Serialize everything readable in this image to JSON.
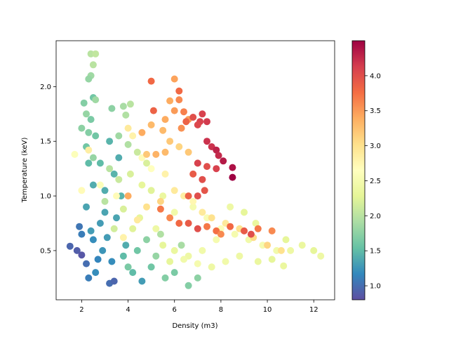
{
  "chart_data": {
    "type": "scatter",
    "title": "",
    "xlabel": "Density (m3)",
    "ylabel": "Temperature (keV)",
    "xlim": [
      0.9,
      12.9
    ],
    "ylim": [
      0.05,
      2.42
    ],
    "xticks": [
      2,
      4,
      6,
      8,
      10,
      12
    ],
    "yticks": [
      0.5,
      1.0,
      1.5,
      2.0
    ],
    "colorbar": {
      "cmap": "Spectral_r",
      "range": [
        0.8,
        4.5
      ],
      "ticks": [
        1.0,
        1.5,
        2.0,
        2.5,
        3.0,
        3.5,
        4.0
      ]
    },
    "points": [
      [
        1.5,
        0.54,
        0.95
      ],
      [
        1.8,
        0.5,
        0.9
      ],
      [
        2.0,
        0.46,
        0.85
      ],
      [
        1.9,
        0.72,
        1.05
      ],
      [
        2.2,
        0.38,
        1.0
      ],
      [
        2.3,
        0.25,
        1.1
      ],
      [
        2.6,
        0.3,
        1.2
      ],
      [
        2.5,
        0.6,
        1.2
      ],
      [
        2.8,
        0.75,
        1.3
      ],
      [
        3.0,
        0.85,
        1.35
      ],
      [
        3.2,
        0.2,
        1.0
      ],
      [
        3.4,
        0.22,
        0.95
      ],
      [
        2.9,
        0.5,
        1.25
      ],
      [
        2.2,
        0.9,
        1.35
      ],
      [
        2.4,
        0.68,
        1.3
      ],
      [
        2.7,
        0.42,
        1.15
      ],
      [
        3.1,
        0.62,
        1.3
      ],
      [
        2.0,
        0.65,
        1.1
      ],
      [
        3.3,
        0.4,
        1.2
      ],
      [
        2.5,
        1.1,
        1.4
      ],
      [
        3.0,
        1.05,
        1.4
      ],
      [
        3.4,
        1.2,
        1.45
      ],
      [
        2.8,
        1.3,
        1.5
      ],
      [
        3.6,
        1.35,
        1.4
      ],
      [
        3.2,
        1.5,
        1.45
      ],
      [
        2.6,
        1.55,
        1.6
      ],
      [
        2.2,
        1.45,
        1.6
      ],
      [
        2.4,
        1.7,
        1.65
      ],
      [
        2.1,
        1.85,
        1.7
      ],
      [
        2.5,
        1.9,
        1.6
      ],
      [
        2.3,
        1.3,
        1.5
      ],
      [
        3.7,
        1.0,
        1.45
      ],
      [
        3.5,
        0.8,
        1.35
      ],
      [
        3.9,
        0.55,
        1.4
      ],
      [
        4.2,
        0.3,
        1.5
      ],
      [
        4.6,
        0.22,
        1.3
      ],
      [
        5.0,
        0.35,
        1.6
      ],
      [
        5.6,
        0.25,
        1.7
      ],
      [
        5.2,
        0.45,
        1.8
      ],
      [
        6.0,
        0.3,
        1.65
      ],
      [
        6.6,
        0.18,
        1.7
      ],
      [
        7.0,
        0.25,
        1.75
      ],
      [
        6.3,
        0.55,
        1.9
      ],
      [
        4.8,
        0.6,
        1.75
      ],
      [
        4.4,
        0.5,
        1.6
      ],
      [
        3.8,
        0.45,
        1.5
      ],
      [
        4.0,
        0.35,
        1.65
      ],
      [
        5.4,
        0.65,
        1.95
      ],
      [
        2.4,
        2.3,
        2.0
      ],
      [
        2.6,
        2.3,
        2.05
      ],
      [
        2.5,
        2.2,
        2.0
      ],
      [
        2.4,
        2.1,
        1.85
      ],
      [
        2.3,
        2.07,
        1.8
      ],
      [
        2.6,
        1.88,
        1.85
      ],
      [
        3.3,
        1.8,
        1.75
      ],
      [
        3.8,
        1.82,
        1.9
      ],
      [
        4.1,
        1.84,
        2.0
      ],
      [
        3.9,
        1.74,
        1.95
      ],
      [
        2.2,
        1.75,
        1.8
      ],
      [
        2.0,
        1.62,
        1.75
      ],
      [
        2.3,
        1.58,
        1.7
      ],
      [
        2.5,
        1.35,
        1.8
      ],
      [
        3.6,
        1.55,
        1.85
      ],
      [
        4.0,
        1.47,
        1.95
      ],
      [
        4.4,
        1.4,
        2.1
      ],
      [
        4.8,
        1.3,
        2.2
      ],
      [
        3.2,
        1.25,
        2.0
      ],
      [
        3.6,
        1.15,
        2.1
      ],
      [
        4.1,
        1.2,
        2.2
      ],
      [
        4.6,
        1.1,
        2.3
      ],
      [
        5.0,
        1.05,
        2.25
      ],
      [
        5.5,
        1.0,
        2.35
      ],
      [
        3.0,
        0.95,
        2.0
      ],
      [
        3.8,
        0.88,
        2.2
      ],
      [
        4.5,
        0.8,
        2.3
      ],
      [
        5.2,
        0.7,
        2.4
      ],
      [
        6.0,
        0.85,
        2.45
      ],
      [
        6.8,
        0.9,
        2.5
      ],
      [
        7.4,
        0.8,
        2.55
      ],
      [
        8.0,
        0.7,
        2.6
      ],
      [
        8.6,
        0.65,
        2.5
      ],
      [
        9.2,
        0.6,
        2.45
      ],
      [
        9.8,
        0.55,
        2.5
      ],
      [
        10.4,
        0.5,
        2.45
      ],
      [
        11.0,
        0.5,
        2.4
      ],
      [
        11.5,
        0.55,
        2.35
      ],
      [
        12.0,
        0.5,
        2.3
      ],
      [
        12.3,
        0.45,
        2.4
      ],
      [
        10.8,
        0.6,
        2.3
      ],
      [
        9.5,
        0.75,
        2.35
      ],
      [
        9.0,
        0.85,
        2.3
      ],
      [
        8.4,
        0.9,
        2.4
      ],
      [
        7.8,
        0.6,
        2.5
      ],
      [
        7.2,
        0.5,
        2.45
      ],
      [
        6.6,
        0.45,
        2.4
      ],
      [
        6.0,
        0.5,
        2.35
      ],
      [
        5.5,
        0.55,
        2.3
      ],
      [
        8.8,
        0.45,
        2.4
      ],
      [
        9.6,
        0.4,
        2.35
      ],
      [
        10.2,
        0.42,
        2.3
      ],
      [
        10.7,
        0.36,
        2.35
      ],
      [
        8.2,
        0.4,
        2.45
      ],
      [
        7.6,
        0.35,
        2.4
      ],
      [
        7.0,
        0.38,
        2.5
      ],
      [
        6.4,
        0.42,
        2.45
      ],
      [
        5.8,
        0.4,
        2.3
      ],
      [
        4.2,
        0.7,
        2.25
      ],
      [
        3.4,
        0.7,
        2.15
      ],
      [
        1.7,
        1.38,
        2.6
      ],
      [
        2.0,
        1.05,
        2.7
      ],
      [
        2.3,
        1.42,
        2.85
      ],
      [
        2.8,
        1.1,
        2.6
      ],
      [
        3.5,
        1.0,
        2.7
      ],
      [
        4.0,
        1.62,
        2.9
      ],
      [
        4.2,
        1.55,
        2.8
      ],
      [
        4.6,
        1.35,
        2.7
      ],
      [
        5.0,
        1.25,
        2.65
      ],
      [
        5.6,
        1.2,
        2.8
      ],
      [
        6.0,
        1.05,
        2.9
      ],
      [
        6.4,
        1.0,
        2.85
      ],
      [
        6.8,
        0.95,
        2.75
      ],
      [
        7.2,
        0.85,
        2.9
      ],
      [
        7.6,
        0.8,
        3.0
      ],
      [
        8.2,
        0.75,
        2.9
      ],
      [
        8.8,
        0.7,
        3.0
      ],
      [
        9.4,
        0.62,
        3.05
      ],
      [
        10.0,
        0.55,
        3.1
      ],
      [
        10.6,
        0.5,
        3.0
      ],
      [
        5.4,
        0.95,
        3.1
      ],
      [
        4.8,
        0.9,
        3.0
      ],
      [
        4.4,
        0.78,
        2.9
      ],
      [
        3.8,
        0.62,
        2.8
      ],
      [
        5.8,
        1.5,
        3.2
      ],
      [
        5.5,
        1.6,
        3.3
      ],
      [
        6.2,
        1.45,
        3.1
      ],
      [
        6.6,
        1.4,
        3.2
      ],
      [
        7.0,
        1.3,
        3.1
      ],
      [
        5.0,
        1.65,
        3.3
      ],
      [
        4.6,
        1.58,
        3.4
      ],
      [
        4.8,
        1.38,
        3.2
      ],
      [
        5.2,
        1.38,
        3.35
      ],
      [
        5.6,
        1.4,
        3.3
      ],
      [
        4.0,
        1.0,
        3.4
      ],
      [
        5.4,
        0.88,
        3.7
      ],
      [
        5.8,
        0.8,
        3.6
      ],
      [
        6.2,
        0.75,
        3.8
      ],
      [
        6.6,
        0.75,
        3.9
      ],
      [
        7.0,
        0.7,
        4.0
      ],
      [
        7.4,
        0.72,
        3.7
      ],
      [
        7.8,
        0.68,
        3.75
      ],
      [
        8.4,
        0.72,
        3.8
      ],
      [
        9.0,
        0.68,
        3.9
      ],
      [
        9.6,
        0.7,
        3.7
      ],
      [
        10.2,
        0.68,
        3.6
      ],
      [
        9.3,
        0.65,
        4.0
      ],
      [
        8.0,
        0.65,
        3.6
      ],
      [
        6.0,
        2.07,
        3.45
      ],
      [
        5.8,
        1.87,
        3.4
      ],
      [
        6.2,
        1.88,
        3.6
      ],
      [
        6.4,
        1.77,
        3.65
      ],
      [
        6.0,
        1.78,
        3.5
      ],
      [
        5.6,
        1.7,
        3.4
      ],
      [
        6.6,
        1.7,
        3.5
      ],
      [
        6.3,
        1.62,
        3.55
      ],
      [
        5.0,
        2.05,
        3.8
      ],
      [
        5.1,
        1.78,
        3.85
      ],
      [
        6.2,
        1.96,
        3.8
      ],
      [
        6.5,
        1.68,
        3.85
      ],
      [
        6.8,
        1.72,
        4.0
      ],
      [
        7.1,
        1.68,
        4.1
      ],
      [
        7.0,
        1.65,
        4.05
      ],
      [
        7.2,
        1.75,
        4.1
      ],
      [
        7.4,
        1.68,
        4.15
      ],
      [
        7.4,
        1.5,
        4.2
      ],
      [
        7.6,
        1.45,
        4.2
      ],
      [
        7.8,
        1.42,
        4.3
      ],
      [
        7.9,
        1.37,
        4.25
      ],
      [
        8.1,
        1.32,
        4.35
      ],
      [
        8.5,
        1.26,
        4.4
      ],
      [
        8.5,
        1.17,
        4.5
      ],
      [
        7.4,
        1.27,
        4.0
      ],
      [
        7.2,
        1.15,
        4.0
      ],
      [
        7.3,
        1.05,
        3.95
      ],
      [
        7.0,
        1.3,
        4.1
      ],
      [
        7.0,
        1.0,
        4.0
      ],
      [
        6.8,
        1.2,
        3.9
      ],
      [
        6.6,
        1.0,
        3.85
      ],
      [
        7.8,
        1.25,
        4.1
      ]
    ]
  }
}
